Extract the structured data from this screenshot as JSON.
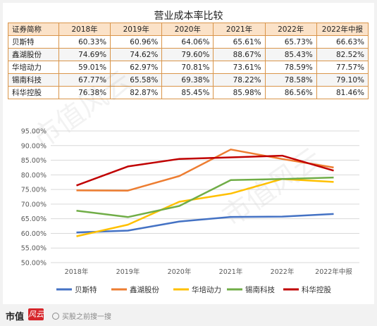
{
  "title": "营业成本率比较",
  "table": {
    "header": [
      "证券简称",
      "2018年",
      "2019年",
      "2020年",
      "2021年",
      "2022年",
      "2022年中报"
    ],
    "rows": [
      [
        "贝斯特",
        "60.33%",
        "60.96%",
        "64.06%",
        "65.61%",
        "65.73%",
        "66.63%"
      ],
      [
        "鑫湖股份",
        "74.69%",
        "74.62%",
        "79.60%",
        "88.67%",
        "85.43%",
        "82.52%"
      ],
      [
        "华培动力",
        "59.01%",
        "62.97%",
        "70.81%",
        "73.61%",
        "78.59%",
        "77.57%"
      ],
      [
        "锡南科技",
        "67.77%",
        "65.58%",
        "69.38%",
        "78.22%",
        "78.58%",
        "79.10%"
      ],
      [
        "科华控股",
        "76.38%",
        "82.87%",
        "85.45%",
        "85.98%",
        "86.56%",
        "81.46%"
      ]
    ]
  },
  "chart_data": {
    "type": "line",
    "categories": [
      "2018年",
      "2019年",
      "2020年",
      "2021年",
      "2022年",
      "2022年中报"
    ],
    "y_ticks": [
      "50.00%",
      "55.00%",
      "60.00%",
      "65.00%",
      "70.00%",
      "75.00%",
      "80.00%",
      "85.00%",
      "90.00%",
      "95.00%"
    ],
    "ylim": [
      50,
      95
    ],
    "grid": true,
    "legend_position": "bottom",
    "series": [
      {
        "name": "贝斯特",
        "color": "#4472c4",
        "values": [
          60.33,
          60.96,
          64.06,
          65.61,
          65.73,
          66.63
        ]
      },
      {
        "name": "鑫湖股份",
        "color": "#ed7d31",
        "values": [
          74.69,
          74.62,
          79.6,
          88.67,
          85.43,
          82.52
        ]
      },
      {
        "name": "华培动力",
        "color": "#ffc000",
        "values": [
          59.01,
          62.97,
          70.81,
          73.61,
          78.59,
          77.57
        ]
      },
      {
        "name": "锡南科技",
        "color": "#70ad47",
        "values": [
          67.77,
          65.58,
          69.38,
          78.22,
          78.58,
          79.1
        ]
      },
      {
        "name": "科华控股",
        "color": "#c00000",
        "values": [
          76.38,
          82.87,
          85.45,
          85.98,
          86.56,
          81.46
        ]
      }
    ]
  },
  "footer": {
    "logo_text": "市值",
    "logo_mark": "风云",
    "search_hint": "买股之前搜一搜"
  },
  "watermark": "市值风云"
}
